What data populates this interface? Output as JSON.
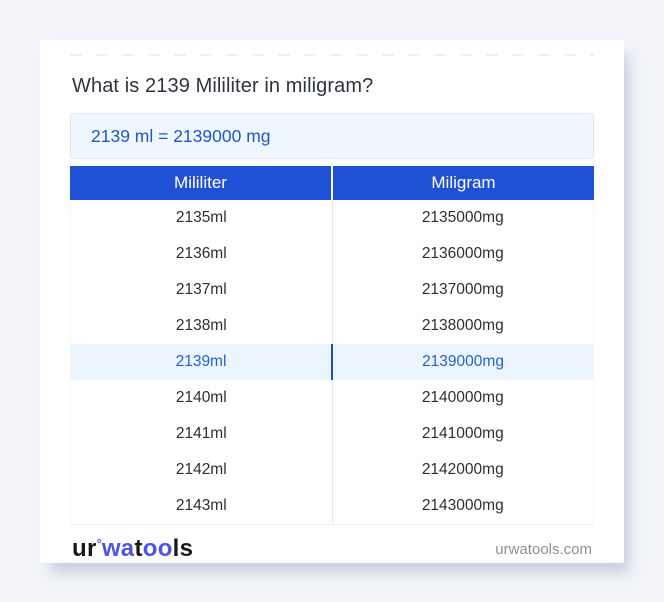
{
  "card": {
    "title": "What is 2139 Mililiter in miligram?",
    "result": "2139 ml = 2139000 mg"
  },
  "table": {
    "headers": [
      "Mililiter",
      "Miligram"
    ],
    "rows": [
      {
        "ml": "2135ml",
        "mg": "2135000mg",
        "highlight": false
      },
      {
        "ml": "2136ml",
        "mg": "2136000mg",
        "highlight": false
      },
      {
        "ml": "2137ml",
        "mg": "2137000mg",
        "highlight": false
      },
      {
        "ml": "2138ml",
        "mg": "2138000mg",
        "highlight": false
      },
      {
        "ml": "2139ml",
        "mg": "2139000mg",
        "highlight": true
      },
      {
        "ml": "2140ml",
        "mg": "2140000mg",
        "highlight": false
      },
      {
        "ml": "2141ml",
        "mg": "2141000mg",
        "highlight": false
      },
      {
        "ml": "2142ml",
        "mg": "2142000mg",
        "highlight": false
      },
      {
        "ml": "2143ml",
        "mg": "2143000mg",
        "highlight": false
      }
    ]
  },
  "footer": {
    "logo_segments": [
      {
        "text": "ur",
        "blue": false,
        "mark": false
      },
      {
        "text": "°",
        "blue": true,
        "mark": true
      },
      {
        "text": "wa",
        "blue": true,
        "mark": false
      },
      {
        "text": "t",
        "blue": false,
        "mark": false
      },
      {
        "text": "oo",
        "blue": true,
        "mark": false
      },
      {
        "text": "ls",
        "blue": false,
        "mark": false
      }
    ],
    "site": "urwatools.com"
  },
  "colors": {
    "page_background": "#f2f4f9",
    "card_background": "#ffffff",
    "header_blue": "#2050d5",
    "header_text": "#ffffff",
    "result_background": "#eff6fd",
    "result_border": "#dbe7f6",
    "result_text": "#2158c4",
    "highlight_row_background": "#ecf4fd",
    "highlight_row_text": "#2563cd",
    "highlight_divider": "#1d4f9f",
    "cell_text": "#2b2f36",
    "column_divider": "#e4e6ea",
    "title_text": "#2f343e",
    "site_text": "#8b909b",
    "logo_blue": "#4b55e2",
    "logo_dark": "#17181a"
  }
}
